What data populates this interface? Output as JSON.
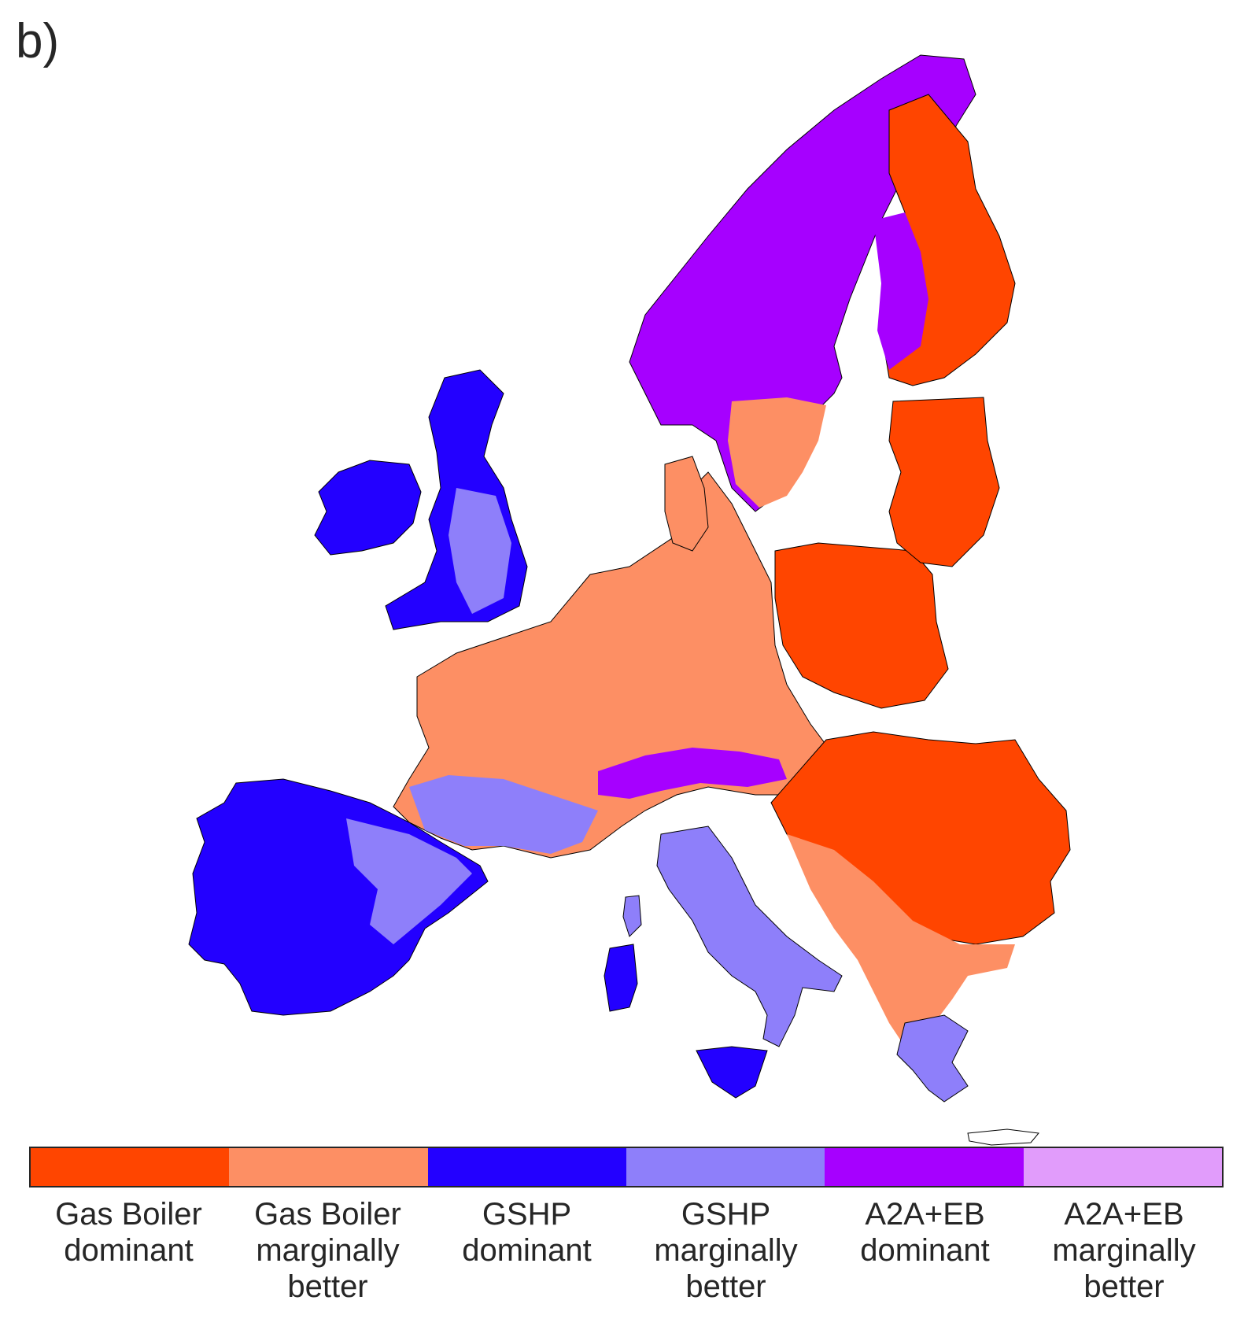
{
  "panel_label": "b)",
  "legend": {
    "items": [
      {
        "lines": [
          "Gas Boiler",
          "dominant"
        ],
        "color": "#ff4500"
      },
      {
        "lines": [
          "Gas Boiler",
          "marginally",
          "better"
        ],
        "color": "#fd8f64"
      },
      {
        "lines": [
          "GSHP",
          "dominant"
        ],
        "color": "#2300ff"
      },
      {
        "lines": [
          "GSHP",
          "marginally",
          "better"
        ],
        "color": "#8e7ffa"
      },
      {
        "lines": [
          "A2A+EB",
          "dominant"
        ],
        "color": "#a600ff"
      },
      {
        "lines": [
          "A2A+EB",
          "marginally",
          "better"
        ],
        "color": "#e19cfb"
      }
    ]
  }
}
